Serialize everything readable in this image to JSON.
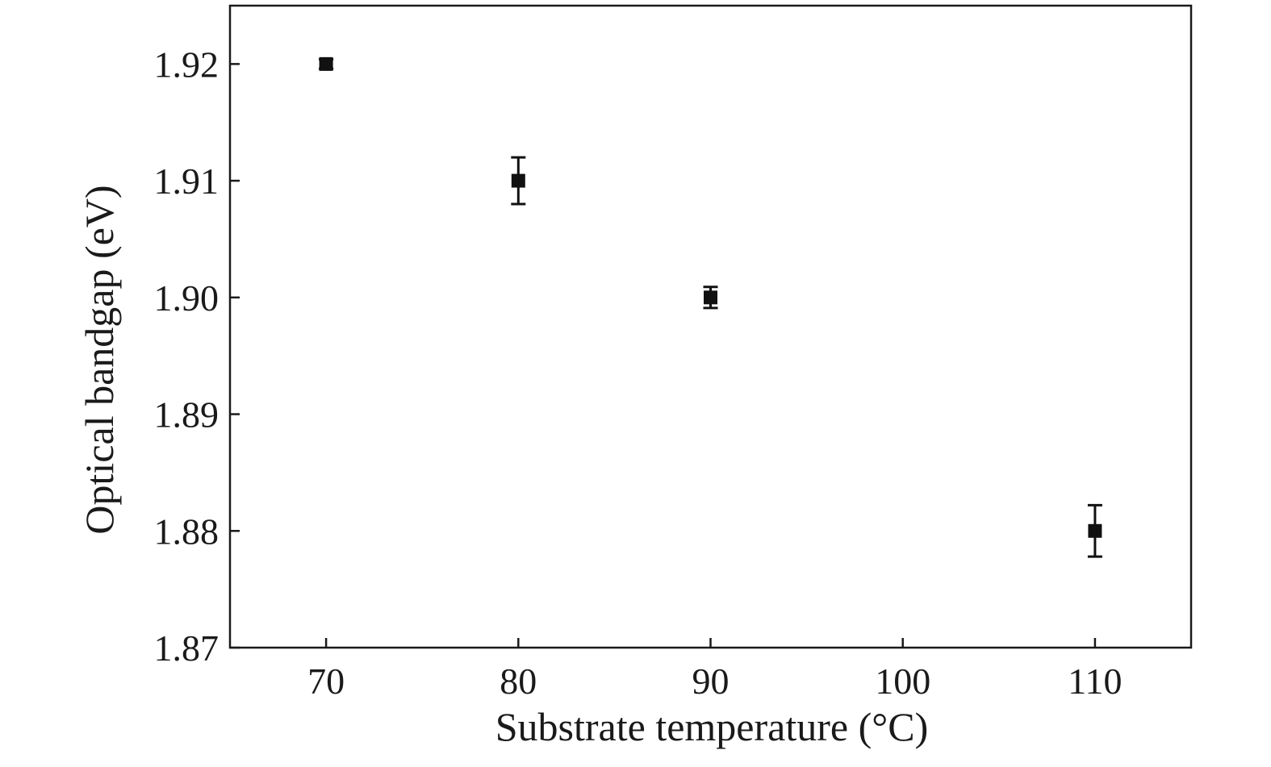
{
  "chart_data": {
    "type": "scatter",
    "xlabel": "Substrate temperature (°C)",
    "ylabel": "Optical bandgap (eV)",
    "xlim": [
      65,
      115
    ],
    "ylim": [
      1.87,
      1.925
    ],
    "xticks": [
      70,
      80,
      90,
      100,
      110
    ],
    "xtick_labels": [
      "70",
      "80",
      "90",
      "100",
      "110"
    ],
    "yticks": [
      1.87,
      1.88,
      1.89,
      1.9,
      1.91,
      1.92
    ],
    "ytick_labels": [
      "1.87",
      "1.88",
      "1.89",
      "1.90",
      "1.91",
      "1.92"
    ],
    "grid": false,
    "legend": false,
    "marker": "square",
    "color": "#111111",
    "series": [
      {
        "x": [
          70,
          80,
          90,
          110
        ],
        "y": [
          1.92,
          1.91,
          1.9,
          1.88
        ],
        "yerr": [
          0.0004,
          0.002,
          0.0009,
          0.0022
        ]
      }
    ]
  }
}
